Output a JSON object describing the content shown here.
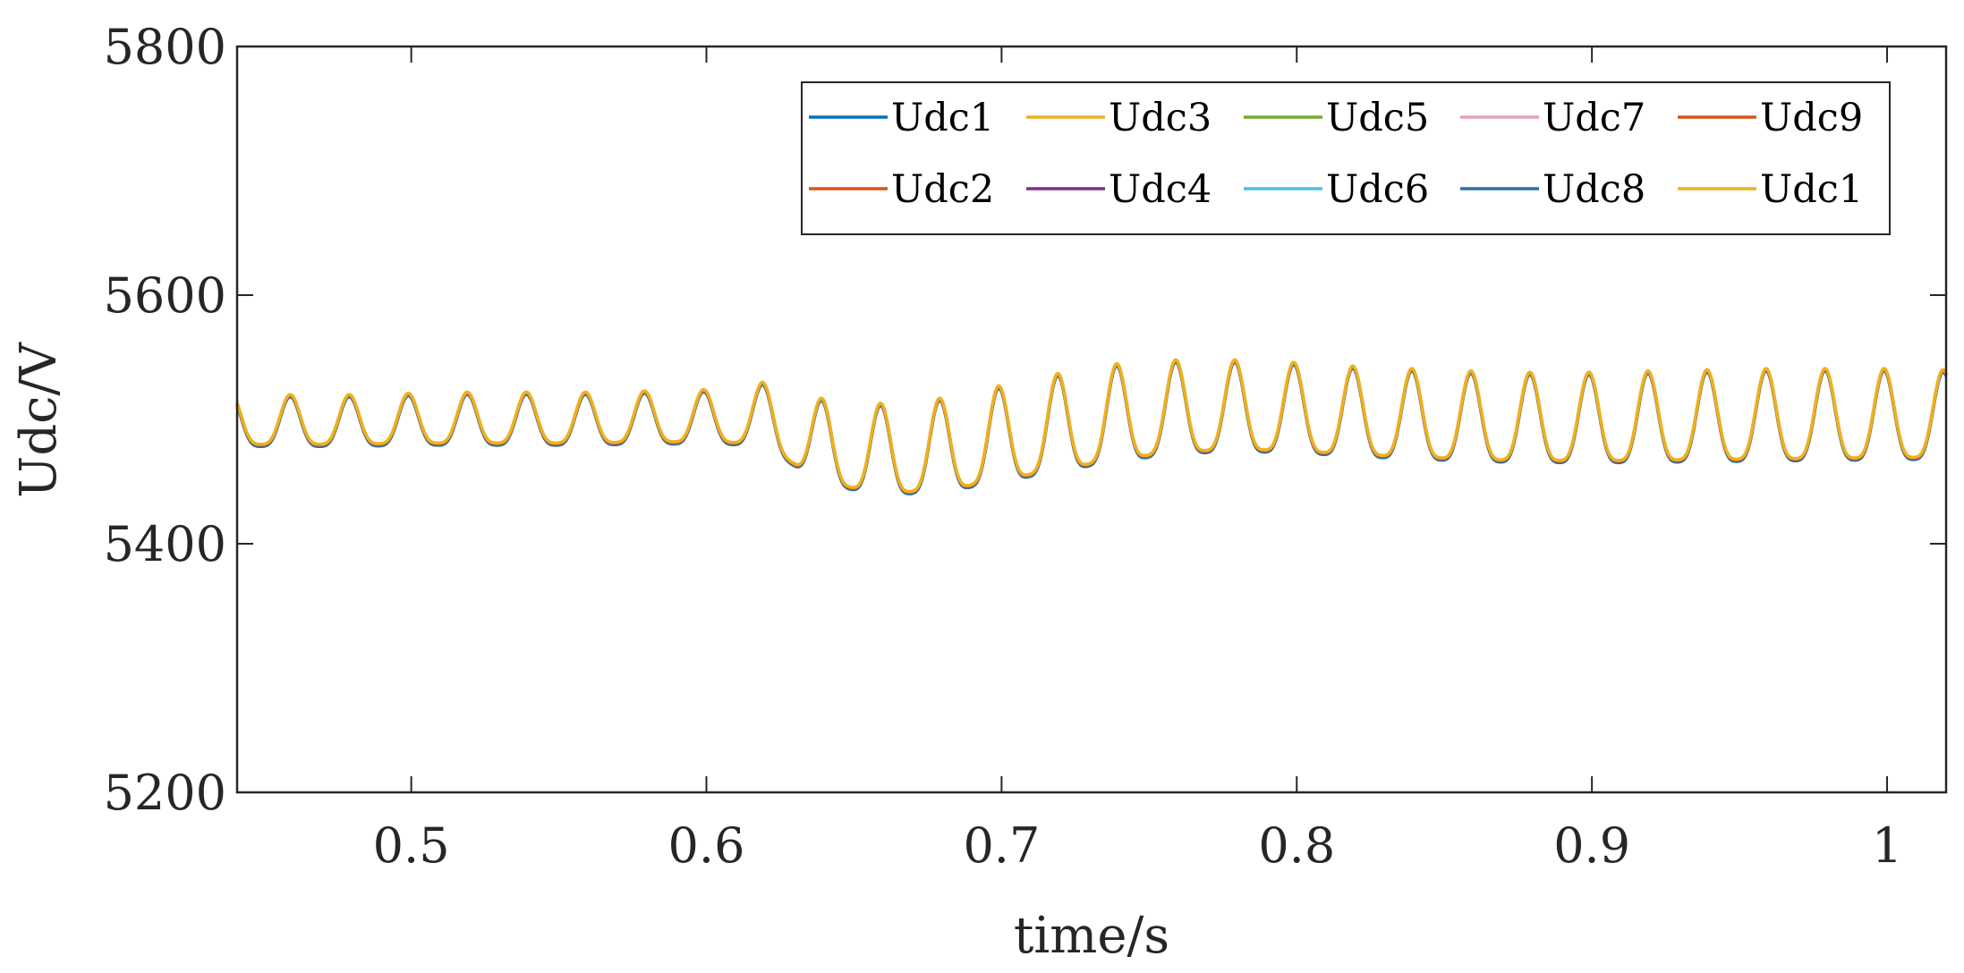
{
  "chart_data": {
    "type": "line",
    "xlabel": "time/s",
    "ylabel": "Udc/V",
    "xlim": [
      0.441,
      1.02
    ],
    "ylim": [
      5200,
      5800
    ],
    "xticks": [
      0.5,
      0.6,
      0.7,
      0.8,
      0.9,
      1
    ],
    "xtick_labels": [
      "0.5",
      "0.6",
      "0.7",
      "0.8",
      "0.9",
      "1"
    ],
    "yticks": [
      5200,
      5400,
      5600,
      5800
    ],
    "ytick_labels": [
      "5200",
      "5400",
      "5600",
      "5800"
    ],
    "grid": false,
    "legend_position": "top-right",
    "legend_columns": 5,
    "series": [
      {
        "name": "Udc1",
        "color": "#0072BD"
      },
      {
        "name": "Udc2",
        "color": "#D95319"
      },
      {
        "name": "Udc3",
        "color": "#EDB120"
      },
      {
        "name": "Udc4",
        "color": "#7E2F8E"
      },
      {
        "name": "Udc5",
        "color": "#77AC30"
      },
      {
        "name": "Udc6",
        "color": "#4DBEEE"
      },
      {
        "name": "Udc7",
        "color": "#E8A0B8"
      },
      {
        "name": "Udc8",
        "color": "#2E6FA8"
      },
      {
        "name": "Udc9",
        "color": "#D95319"
      },
      {
        "name": "Udc1",
        "color": "#EDB120"
      }
    ],
    "waveform": {
      "period": 0.02,
      "peak_x": [
        0.459,
        0.479,
        0.499,
        0.519,
        0.539,
        0.559,
        0.579,
        0.599,
        0.618,
        0.638,
        0.658,
        0.678,
        0.698,
        0.718,
        0.738,
        0.758,
        0.778,
        0.798,
        0.818,
        0.838,
        0.858,
        0.878,
        0.898,
        0.918,
        0.938,
        0.958,
        0.978,
        0.998,
        1.018
      ],
      "peak_y": [
        5520,
        5520,
        5521,
        5522,
        5522,
        5522,
        5523,
        5524,
        5530,
        5517,
        5513,
        5517,
        5527,
        5537,
        5545,
        5548,
        5548,
        5546,
        5543,
        5541,
        5539,
        5538,
        5538,
        5539,
        5540,
        5541,
        5541,
        5541,
        5540
      ],
      "trough_y": [
        5480,
        5480,
        5481,
        5481,
        5481,
        5481,
        5482,
        5482,
        5481,
        5450,
        5441,
        5443,
        5451,
        5460,
        5468,
        5474,
        5476,
        5475,
        5472,
        5470,
        5468,
        5467,
        5467,
        5467,
        5468,
        5468,
        5469,
        5469,
        5470
      ]
    }
  }
}
